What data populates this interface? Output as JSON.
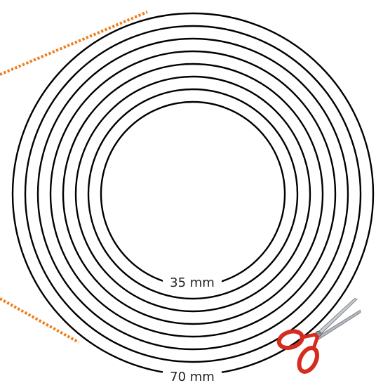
{
  "diagram": {
    "ring_count": 8,
    "ring_color": "#000000",
    "background": "#ffffff",
    "guide_color": "#f07d1a",
    "labels": {
      "inner_diameter": "35 mm",
      "outer_diameter": "70 mm"
    },
    "icons": {
      "cut_marker": "scissors-icon"
    },
    "scissors_colors": {
      "handle": "#d62b1f",
      "blade": "#c9ccd1"
    }
  }
}
